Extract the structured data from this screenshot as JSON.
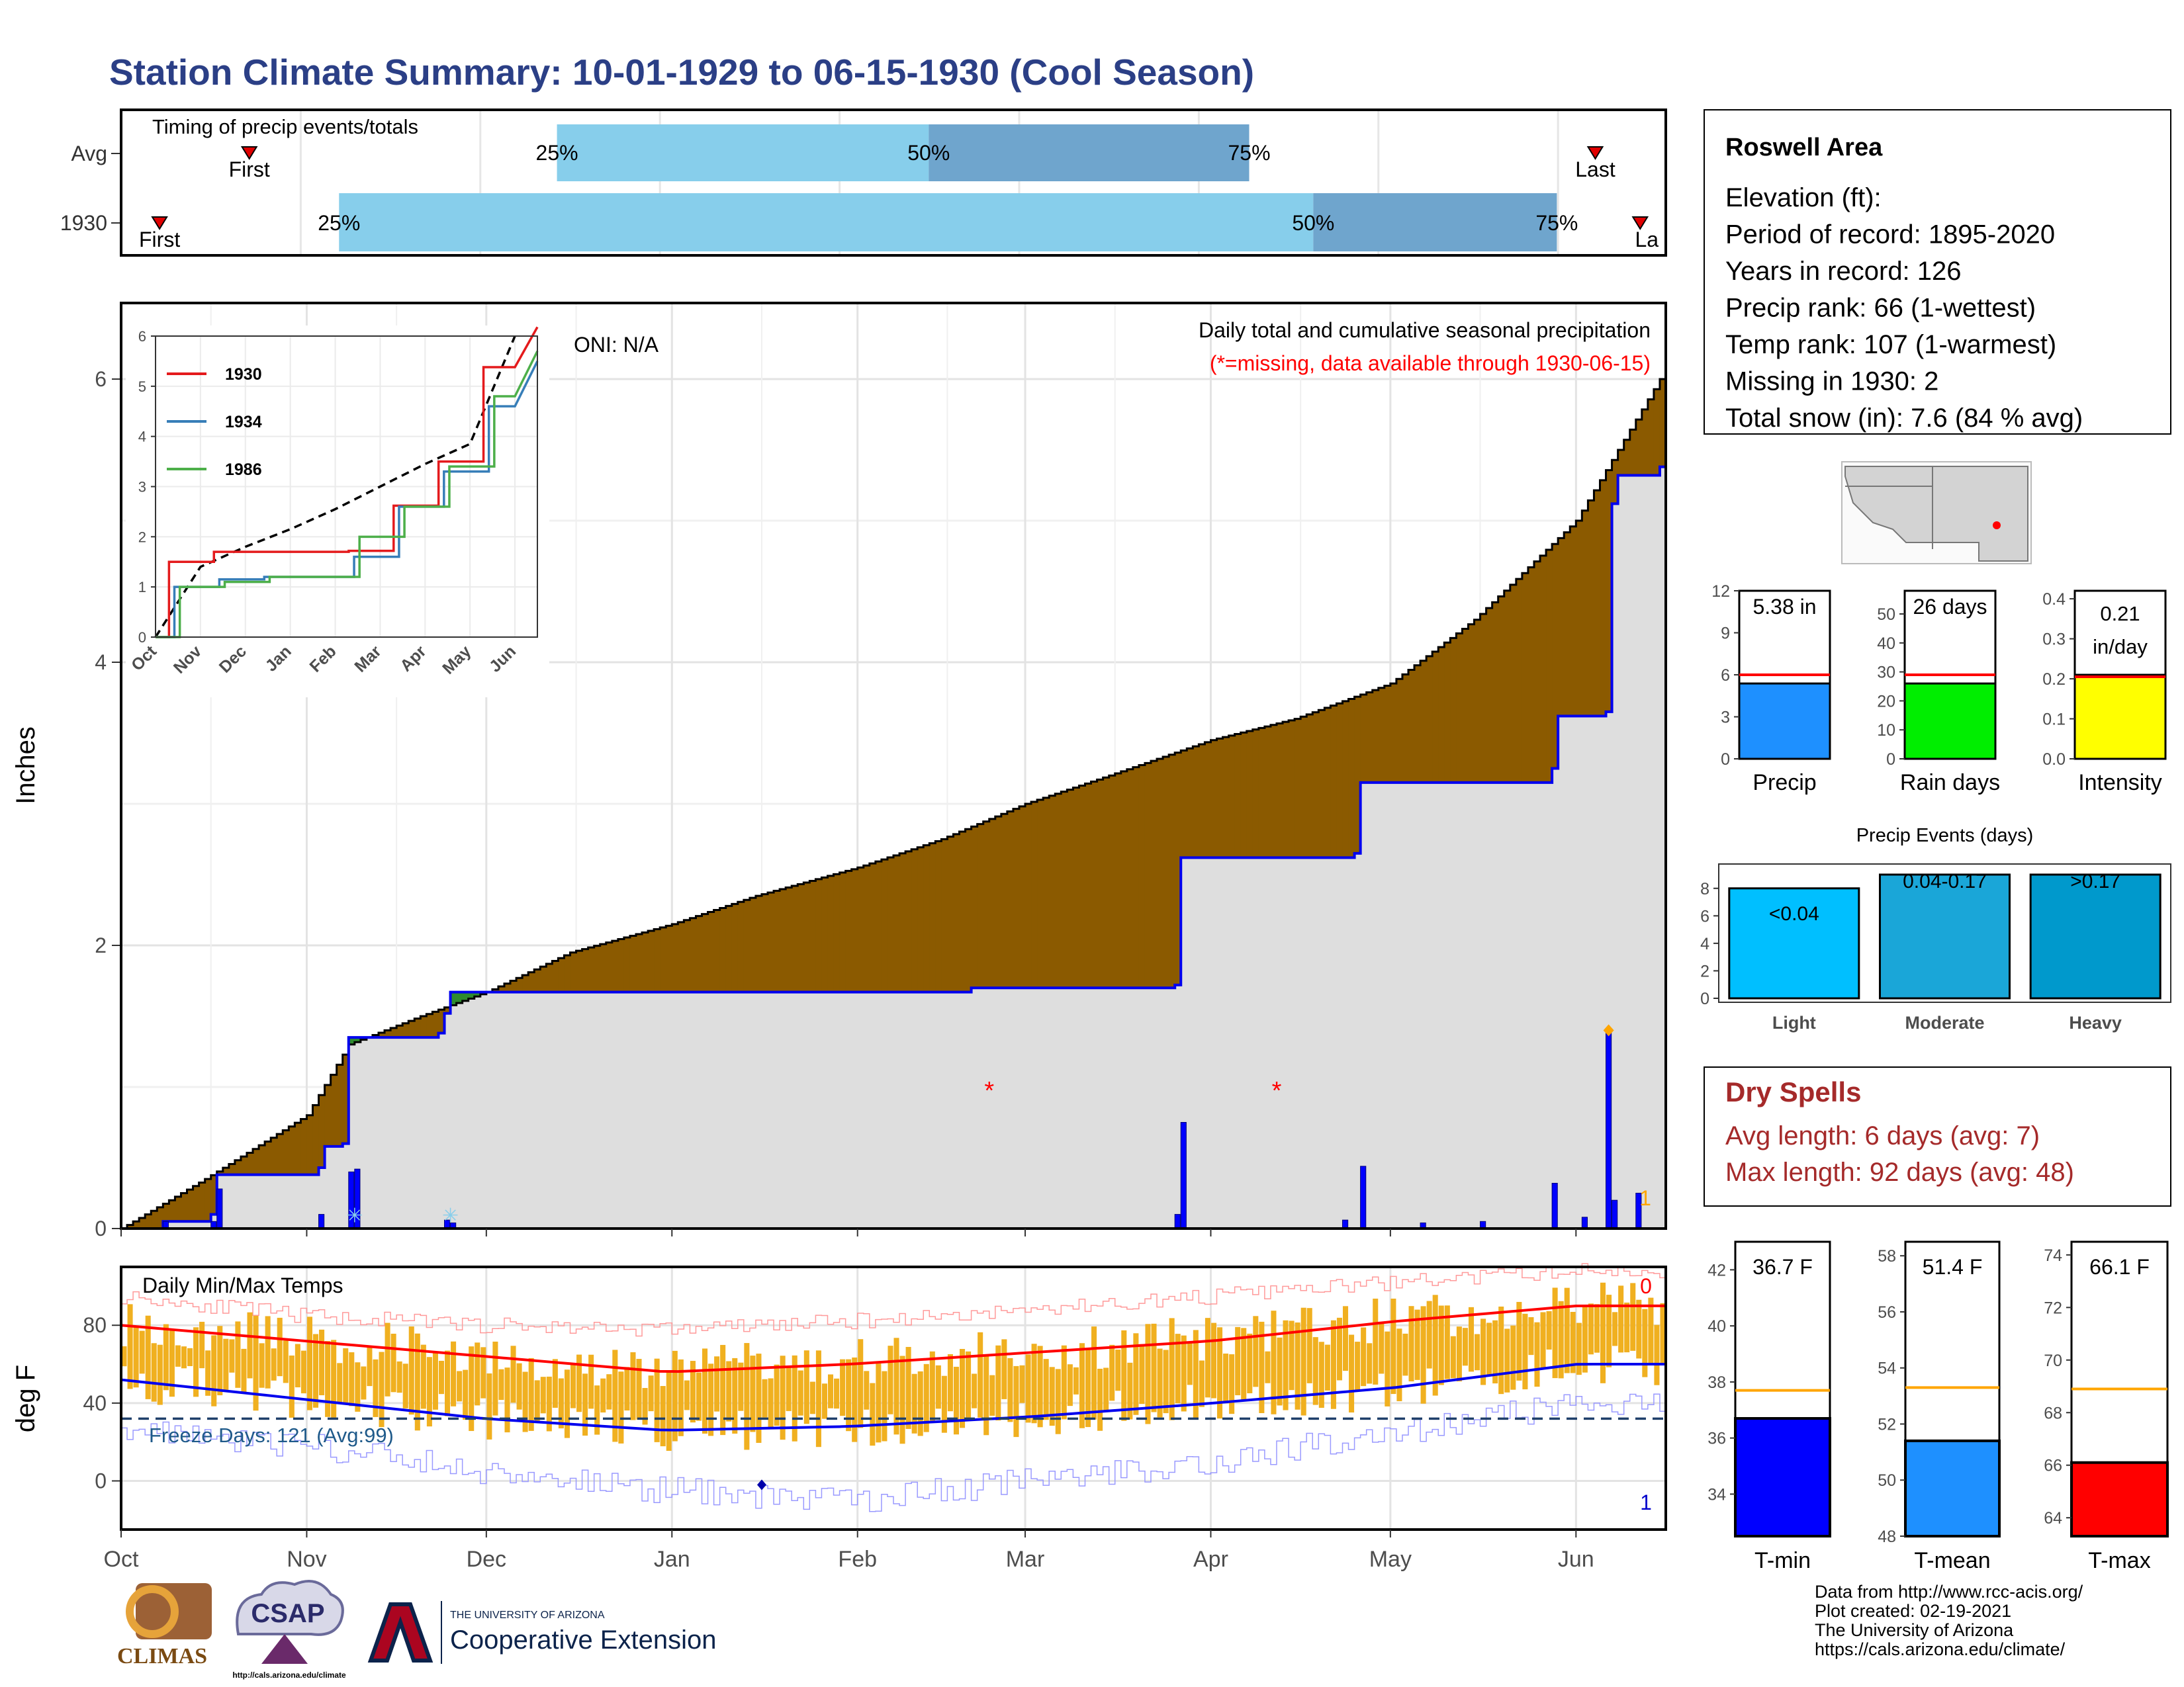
{
  "title": "Station Climate Summary: 10-01-1929 to 06-15-1930 (Cool Season)",
  "timing": {
    "label": "Timing of precip events/totals",
    "rows": [
      {
        "name": "Avg",
        "first_label": "First",
        "last_label": "Last",
        "first_day": 20,
        "last_day": 230,
        "q25_day": 68,
        "q50_day": 126,
        "q75_day": 176,
        "q25_label": "25%",
        "q50_label": "50%",
        "q75_label": "75%"
      },
      {
        "name": "1930",
        "first_label": "First",
        "last_label": "La",
        "first_day": 6,
        "last_day": 237,
        "q25_day": 34,
        "q50_day": 186,
        "q75_day": 224,
        "q25_label": "25%",
        "q50_label": "50%",
        "q75_label": "75%"
      }
    ],
    "colors": {
      "light": "#87ceeb",
      "dark": "#6fa5cd"
    }
  },
  "precip_panel": {
    "ylabel": "Inches",
    "oni": "ONI: N/A",
    "caption": "Daily total and cumulative seasonal precipitation",
    "missing_note": "(*=missing, data available through 1930-06-15)",
    "corner_count": "1",
    "yticks": [
      0,
      2,
      4,
      6
    ]
  },
  "inset": {
    "series": [
      {
        "name": "1930",
        "color": "#e41a1c"
      },
      {
        "name": "1934",
        "color": "#377eb8"
      },
      {
        "name": "1986",
        "color": "#4daf4a"
      }
    ],
    "yticks": [
      "0",
      "1",
      "2",
      "3",
      "4",
      "5",
      "6"
    ],
    "xticks": [
      "Oct",
      "Nov",
      "Dec",
      "Jan",
      "Feb",
      "Mar",
      "Apr",
      "May",
      "Jun"
    ]
  },
  "temp_panel": {
    "title": "Daily Min/Max Temps",
    "ylabel": "deg F",
    "freeze_label": "Freeze Days: 121 (Avg:99)",
    "count_top": "0",
    "count_bottom": "1",
    "yticks": [
      "0",
      "40",
      "80"
    ]
  },
  "months": [
    "Oct",
    "Nov",
    "Dec",
    "Jan",
    "Feb",
    "Mar",
    "Apr",
    "May",
    "Jun"
  ],
  "station": {
    "name": "Roswell Area",
    "lines": [
      "Elevation (ft):",
      "Period of record: 1895-2020",
      "Years in record: 126",
      "Precip rank: 66 (1-wettest)",
      "Temp rank: 107 (1-warmest)",
      "Missing in 1930: 2",
      "Total snow (in): 7.6 (84 % avg)"
    ]
  },
  "summary_bars": [
    {
      "label": "Precip",
      "value_text": "5.38 in",
      "value": 5.38,
      "avg": 6.0,
      "ymax": 12,
      "ticks": [
        "0",
        "3",
        "6",
        "9",
        "12"
      ],
      "tick_vals": [
        0,
        3,
        6,
        9,
        12
      ],
      "color": "#1e90ff"
    },
    {
      "label": "Rain days",
      "value_text": "26 days",
      "value": 26,
      "avg": 29,
      "ymax": 58,
      "ticks": [
        "0",
        "10",
        "20",
        "30",
        "40",
        "50"
      ],
      "tick_vals": [
        0,
        10,
        20,
        30,
        40,
        50
      ],
      "color": "#00ee00"
    },
    {
      "label": "Intensity",
      "value_text": "0.21\nin/day",
      "value_text_1": "0.21",
      "value_text_2": "in/day",
      "value": 0.21,
      "avg": 0.205,
      "ymax": 0.42,
      "ticks": [
        "0.0",
        "0.1",
        "0.2",
        "0.3",
        "0.4"
      ],
      "tick_vals": [
        0,
        0.1,
        0.2,
        0.3,
        0.4
      ],
      "color": "#ffff00"
    }
  ],
  "events": {
    "title": "Precip Events (days)",
    "categories": [
      "Light",
      "Moderate",
      "Heavy"
    ],
    "bin_labels": [
      "<0.04",
      "0.04-0.17",
      ">0.17"
    ],
    "values": [
      8,
      9,
      9
    ],
    "ticks": [
      "0",
      "2",
      "4",
      "6",
      "8"
    ],
    "colors": [
      "#00bfff",
      "#1aa6d8",
      "#0099cc"
    ]
  },
  "dry_spells": {
    "title": "Dry Spells",
    "avg": "Avg length: 6 days (avg: 7)",
    "max": "Max length: 92 days (avg: 48)"
  },
  "temp_bars": [
    {
      "label": "T-min",
      "value_text": "36.7 F",
      "value": 36.7,
      "avg": 37.7,
      "ymin": 32.5,
      "ymax": 43,
      "ticks": [
        "34",
        "36",
        "38",
        "40",
        "42"
      ],
      "tick_vals": [
        34,
        36,
        38,
        40,
        42
      ],
      "color": "#0000ff"
    },
    {
      "label": "T-mean",
      "value_text": "51.4 F",
      "value": 51.4,
      "avg": 53.3,
      "ymin": 48,
      "ymax": 58.5,
      "ticks": [
        "48",
        "50",
        "52",
        "54",
        "56",
        "58"
      ],
      "tick_vals": [
        48,
        50,
        52,
        54,
        56,
        58
      ],
      "color": "#1e90ff"
    },
    {
      "label": "T-max",
      "value_text": "66.1 F",
      "value": 66.1,
      "avg": 68.9,
      "ymin": 63.3,
      "ymax": 74.5,
      "ticks": [
        "64",
        "66",
        "68",
        "70",
        "72",
        "74"
      ],
      "tick_vals": [
        64,
        66,
        68,
        70,
        72,
        74
      ],
      "color": "#ff0000"
    }
  ],
  "credits": [
    "Data from http://www.rcc-acis.org/",
    "Plot created: 02-19-2021",
    "The University of Arizona",
    "https://cals.arizona.edu/climate/"
  ],
  "logos": {
    "climas": "CLIMAS",
    "csap": "CSAP",
    "csap_url": "http://cals.arizona.edu/climate",
    "ua_small": "THE UNIVERSITY OF ARIZONA",
    "ua_big": "Cooperative Extension"
  },
  "chart_data": [
    {
      "type": "area",
      "title": "Daily total and cumulative seasonal precipitation",
      "ylabel": "Inches",
      "ylim": [
        0,
        6.5
      ],
      "x_start": "1929-10-01",
      "x_end": "1930-06-15",
      "avg_cumulative": [
        [
          "1929-10-01",
          0.0
        ],
        [
          "1929-10-15",
          0.35
        ],
        [
          "1929-11-01",
          0.8
        ],
        [
          "1929-11-08",
          1.3
        ],
        [
          "1929-11-20",
          1.5
        ],
        [
          "1929-12-01",
          1.67
        ],
        [
          "1929-12-15",
          1.95
        ],
        [
          "1930-01-01",
          2.15
        ],
        [
          "1930-01-15",
          2.35
        ],
        [
          "1930-02-01",
          2.55
        ],
        [
          "1930-02-15",
          2.75
        ],
        [
          "1930-03-01",
          3.0
        ],
        [
          "1930-03-15",
          3.2
        ],
        [
          "1930-04-01",
          3.45
        ],
        [
          "1930-04-15",
          3.6
        ],
        [
          "1930-05-01",
          3.85
        ],
        [
          "1930-05-15",
          4.3
        ],
        [
          "1930-06-01",
          5.0
        ],
        [
          "1930-06-15",
          6.0
        ]
      ],
      "cumulative_1930": [
        [
          "1929-10-01",
          0.0
        ],
        [
          "1929-10-08",
          0.05
        ],
        [
          "1929-10-16",
          0.1
        ],
        [
          "1929-10-17",
          0.38
        ],
        [
          "1929-11-03",
          0.43
        ],
        [
          "1929-11-04",
          0.58
        ],
        [
          "1929-11-07",
          0.6
        ],
        [
          "1929-11-08",
          1.35
        ],
        [
          "1929-11-23",
          1.38
        ],
        [
          "1929-11-24",
          1.52
        ],
        [
          "1929-11-25",
          1.67
        ],
        [
          "1930-02-20",
          1.7
        ],
        [
          "1930-03-26",
          1.72
        ],
        [
          "1930-03-27",
          2.62
        ],
        [
          "1930-04-25",
          2.65
        ],
        [
          "1930-04-26",
          3.15
        ],
        [
          "1930-05-28",
          3.25
        ],
        [
          "1930-05-29",
          3.62
        ],
        [
          "1930-06-06",
          3.65
        ],
        [
          "1930-06-07",
          5.12
        ],
        [
          "1930-06-08",
          5.32
        ],
        [
          "1930-06-15",
          5.38
        ]
      ],
      "daily_1930": [
        [
          "1929-10-08",
          0.05
        ],
        [
          "1929-10-16",
          0.05
        ],
        [
          "1929-10-17",
          0.28
        ],
        [
          "1929-11-03",
          0.1
        ],
        [
          "1929-11-08",
          0.4
        ],
        [
          "1929-11-09",
          0.42
        ],
        [
          "1929-11-24",
          0.06
        ],
        [
          "1929-11-25",
          0.04
        ],
        [
          "1930-03-26",
          0.1
        ],
        [
          "1930-03-27",
          0.75
        ],
        [
          "1930-04-23",
          0.06
        ],
        [
          "1930-04-26",
          0.44
        ],
        [
          "1930-05-06",
          0.04
        ],
        [
          "1930-05-16",
          0.05
        ],
        [
          "1930-05-28",
          0.32
        ],
        [
          "1930-06-02",
          0.08
        ],
        [
          "1930-06-06",
          1.4
        ],
        [
          "1930-06-07",
          0.2
        ],
        [
          "1930-06-11",
          0.25
        ]
      ],
      "missing_days": [
        "1930-02-23",
        "1930-04-12"
      ],
      "snow_days": [
        "1929-11-09",
        "1929-11-25"
      ]
    },
    {
      "type": "line",
      "title": "",
      "categories": [
        "Oct",
        "Nov",
        "Dec",
        "Jan",
        "Feb",
        "Mar",
        "Apr",
        "May",
        "Jun"
      ],
      "ylim": [
        0,
        6
      ],
      "series": [
        {
          "name": "1930",
          "values": [
            0.0,
            1.5,
            1.7,
            1.7,
            1.7,
            1.72,
            2.62,
            3.5,
            5.38
          ]
        },
        {
          "name": "1934",
          "values": [
            0.0,
            1.0,
            1.15,
            1.2,
            1.2,
            1.6,
            2.6,
            3.3,
            4.6
          ]
        },
        {
          "name": "1986",
          "values": [
            0.0,
            1.0,
            1.1,
            1.2,
            1.2,
            2.0,
            2.6,
            3.4,
            4.8
          ]
        }
      ],
      "avg_line": [
        0.0,
        1.4,
        1.8,
        2.15,
        2.55,
        3.0,
        3.45,
        3.85,
        6.0
      ]
    },
    {
      "type": "line",
      "title": "Daily Min/Max Temps",
      "ylabel": "deg F",
      "ylim": [
        -25,
        110
      ],
      "freeze_line": 32,
      "months": [
        "Oct",
        "Nov",
        "Dec",
        "Jan",
        "Feb",
        "Mar",
        "Apr",
        "May",
        "Jun"
      ],
      "avg_max_monthly": [
        80,
        72,
        64,
        56,
        60,
        66,
        72,
        82,
        90
      ],
      "avg_min_monthly": [
        52,
        42,
        32,
        26,
        28,
        33,
        40,
        48,
        60
      ],
      "record_max_monthly": [
        95,
        85,
        80,
        78,
        82,
        88,
        95,
        102,
        108
      ],
      "record_min_monthly": [
        28,
        18,
        5,
        -5,
        -10,
        0,
        10,
        25,
        40
      ],
      "marked_min_point": [
        "1930-01-16",
        -2
      ]
    },
    {
      "type": "bar",
      "title": "Precip Events (days)",
      "categories": [
        "Light",
        "Moderate",
        "Heavy"
      ],
      "values": [
        8,
        9,
        9
      ]
    }
  ]
}
